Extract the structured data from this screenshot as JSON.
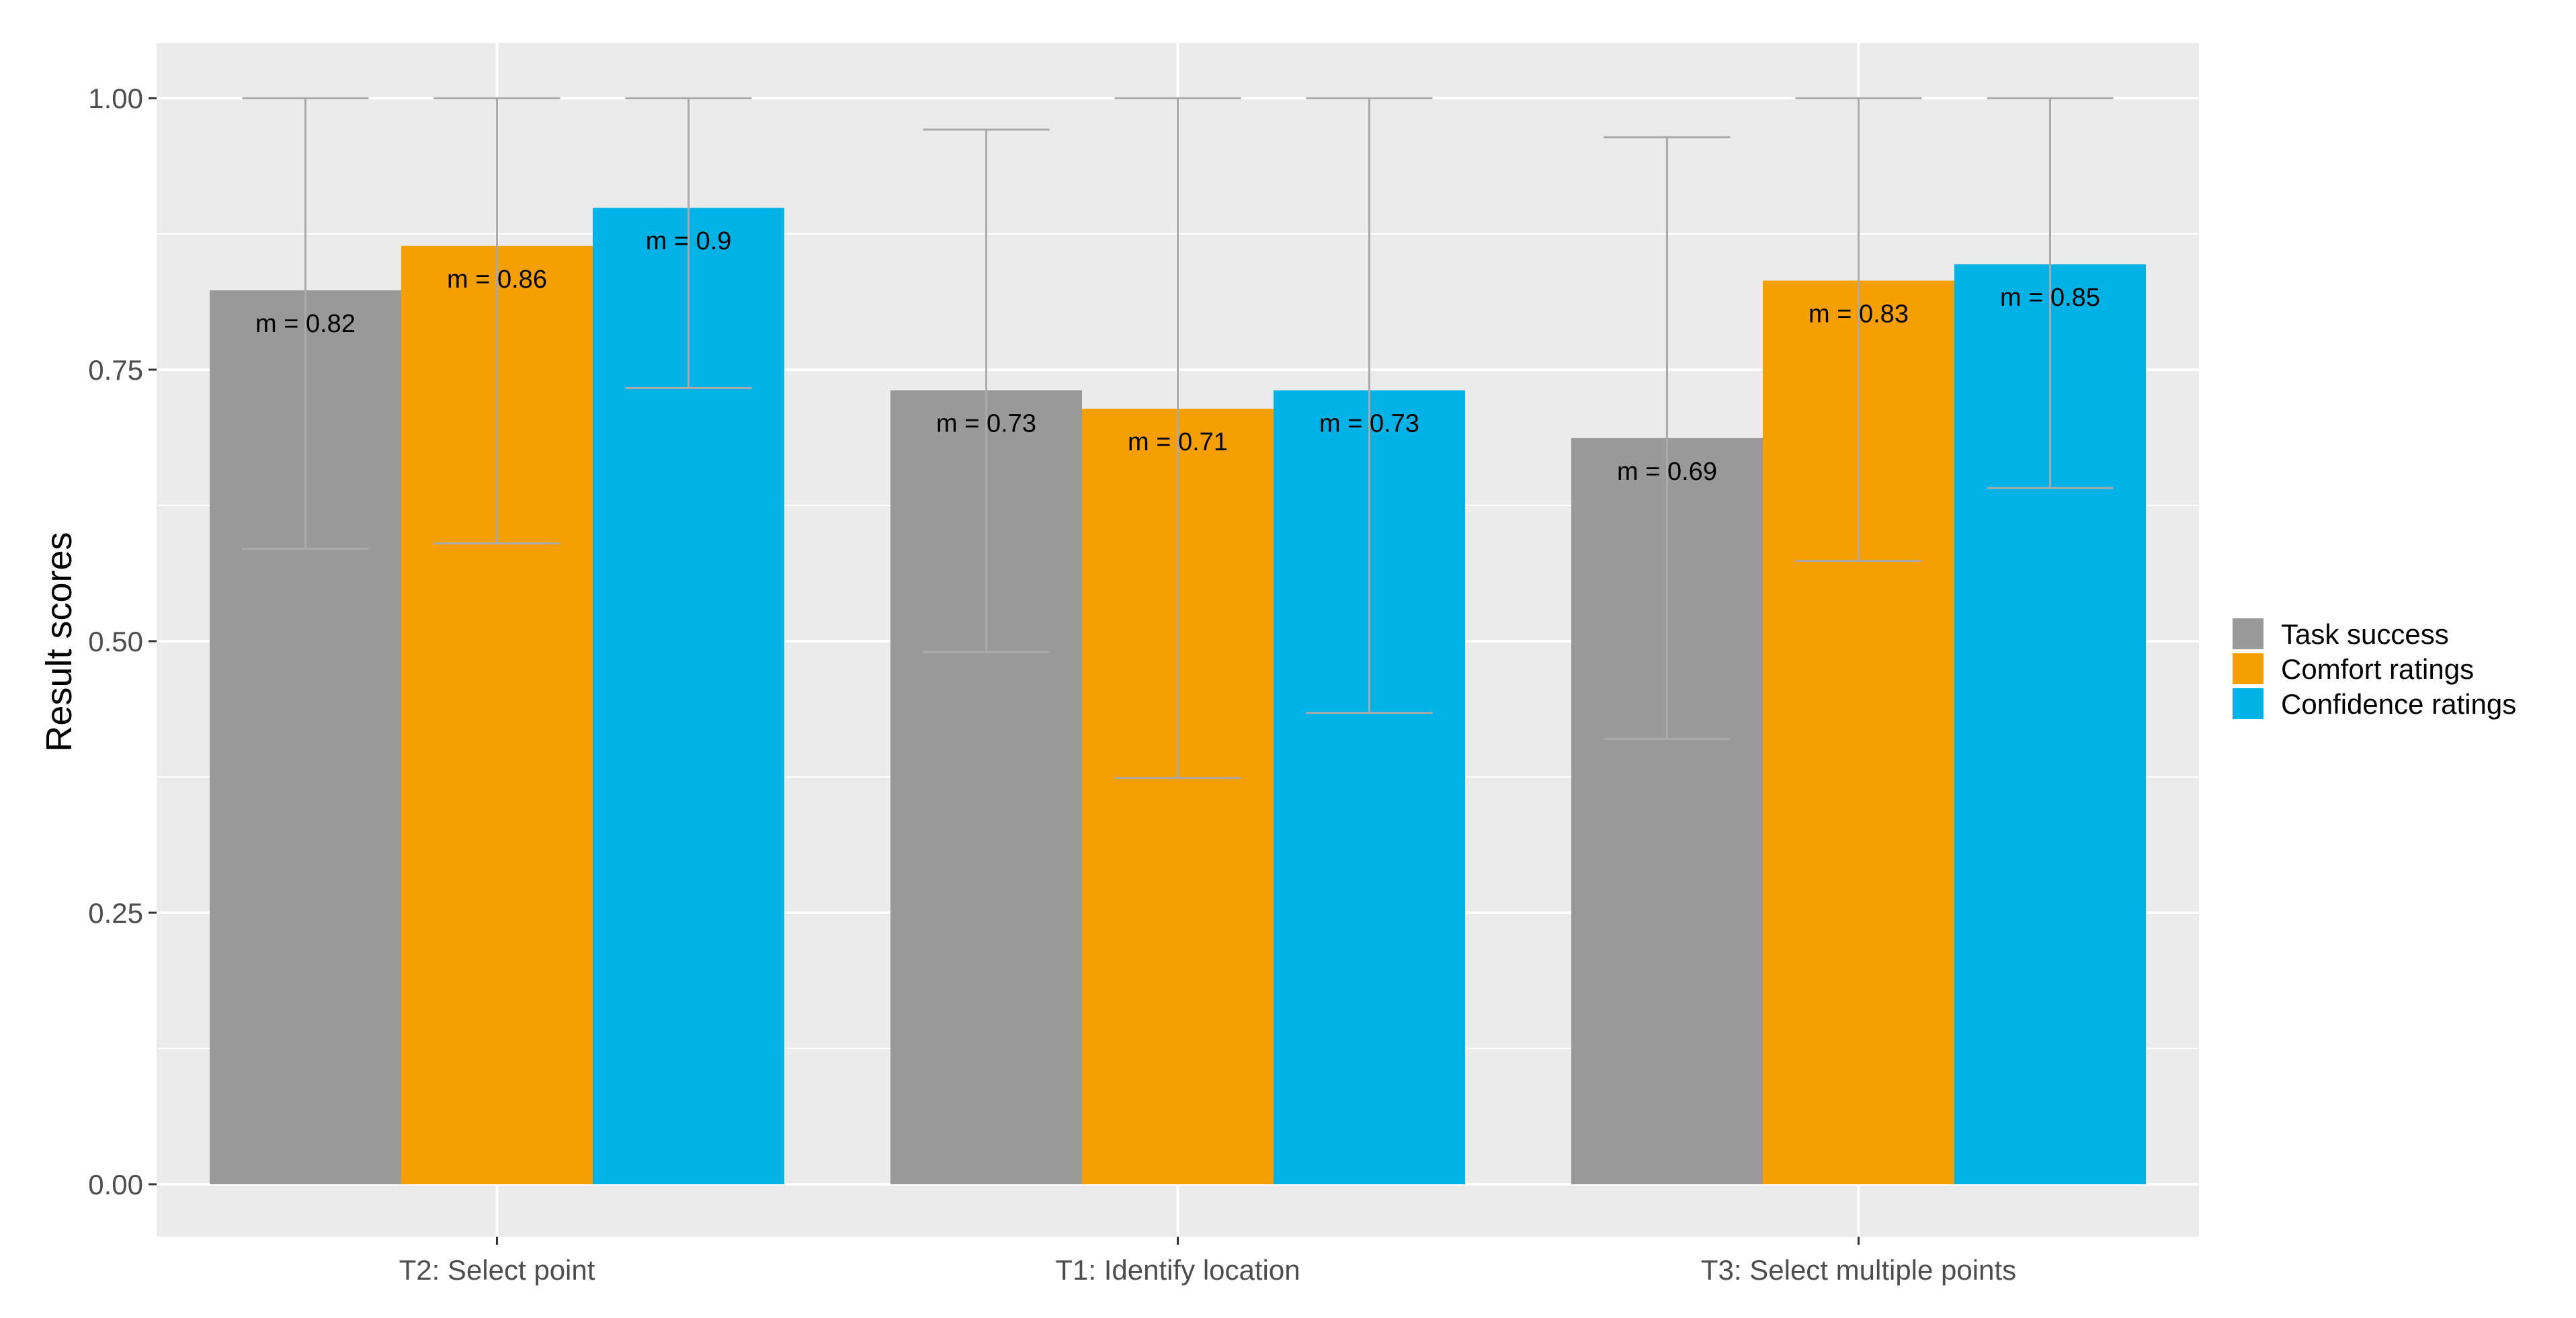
{
  "chart_data": {
    "type": "bar",
    "title": "",
    "xlabel": "",
    "ylabel": "Result scores",
    "ylim": [
      0,
      1.05
    ],
    "yticks": [
      0,
      0.25,
      0.5,
      0.75,
      1.0
    ],
    "ytick_labels": [
      "0.00",
      "0.25",
      "0.50",
      "0.75",
      "1.00"
    ],
    "categories": [
      "T2: Select point",
      "T1: Identify location",
      "T3: Select multiple points"
    ],
    "series": [
      {
        "name": "Task success",
        "color": "#999999",
        "values": [
          0.823,
          0.731,
          0.687
        ],
        "err_low": [
          0.585,
          0.49,
          0.41
        ],
        "err_high": [
          1.0,
          0.971,
          0.964
        ],
        "labels": [
          "m = 0.82",
          "m = 0.73",
          "m = 0.69"
        ]
      },
      {
        "name": "Comfort ratings",
        "color": "#F5A000",
        "values": [
          0.864,
          0.714,
          0.832
        ],
        "err_low": [
          0.59,
          0.374,
          0.574
        ],
        "err_high": [
          1.0,
          1.0,
          1.0
        ],
        "labels": [
          "m = 0.86",
          "m = 0.71",
          "m = 0.83"
        ]
      },
      {
        "name": "Confidence ratings",
        "color": "#00B2E6",
        "values": [
          0.899,
          0.731,
          0.847
        ],
        "err_low": [
          0.733,
          0.434,
          0.641
        ],
        "err_high": [
          1.0,
          1.0,
          1.0
        ],
        "labels": [
          "m = 0.9",
          "m = 0.73",
          "m = 0.85"
        ]
      }
    ],
    "grid": true,
    "legend_position": "right",
    "panel_background": "#EBEBEB",
    "gridline_color": "#FFFFFF",
    "errorbar_color": "#AAAAAA"
  }
}
